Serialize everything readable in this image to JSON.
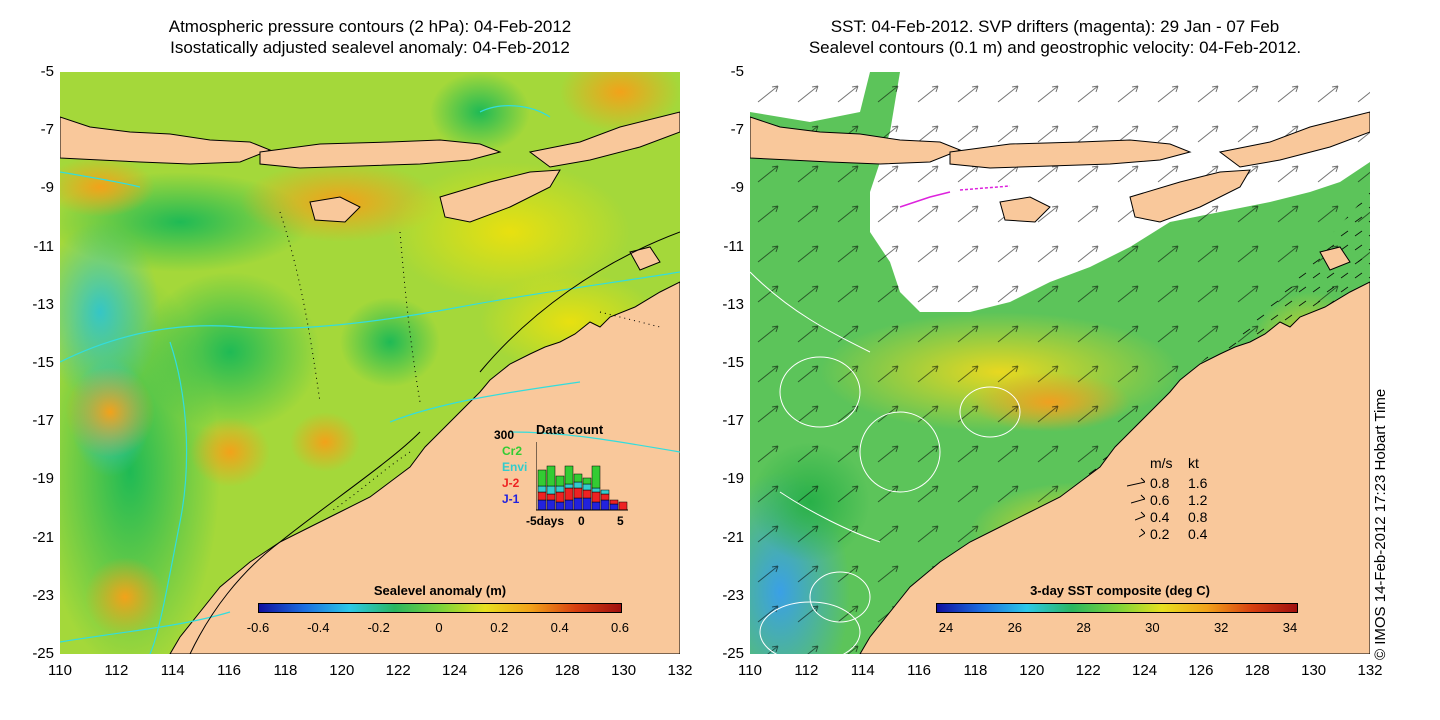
{
  "left_panel": {
    "title_line1": "Atmospheric pressure contours (2 hPa): 04-Feb-2012",
    "title_line2": "Isostatically adjusted sealevel anomaly: 04-Feb-2012",
    "colorbar": {
      "label": "Sealevel anomaly (m)",
      "ticks": [
        "-0.6",
        "-0.4",
        "-0.2",
        "0",
        "0.2",
        "0.4",
        "0.6"
      ]
    },
    "data_count": {
      "title": "Data count",
      "max_label": "300",
      "series": [
        {
          "name": "Cr2",
          "color": "#33cc33"
        },
        {
          "name": "Envi",
          "color": "#33cccc"
        },
        {
          "name": "J-2",
          "color": "#ee2222"
        },
        {
          "name": "J-1",
          "color": "#2222dd"
        }
      ],
      "x_ticks": [
        "-5",
        "0",
        "5"
      ],
      "x_unit": "days"
    }
  },
  "right_panel": {
    "title_line1": "SST: 04-Feb-2012. SVP drifters (magenta): 29 Jan - 07 Feb",
    "title_line2": "Sealevel contours (0.1 m) and geostrophic velocity: 04-Feb-2012.",
    "colorbar": {
      "label": "3-day SST composite (deg C)",
      "ticks": [
        "24",
        "26",
        "28",
        "30",
        "32",
        "34"
      ]
    },
    "velocity_legend": {
      "header_ms": "m/s",
      "header_kt": "kt",
      "rows": [
        {
          "ms": "0.8",
          "kt": "1.6"
        },
        {
          "ms": "0.6",
          "kt": "1.2"
        },
        {
          "ms": "0.4",
          "kt": "0.8"
        },
        {
          "ms": "0.2",
          "kt": "0.4"
        }
      ]
    },
    "credit": "© IMOS 14-Feb-2012 17:23 Hobart Time"
  },
  "axes": {
    "y_ticks": [
      "-5",
      "-7",
      "-9",
      "-11",
      "-13",
      "-15",
      "-17",
      "-19",
      "-21",
      "-23",
      "-25"
    ],
    "x_ticks": [
      "110",
      "112",
      "114",
      "116",
      "118",
      "120",
      "122",
      "124",
      "126",
      "128",
      "130",
      "132"
    ]
  },
  "colors": {
    "land": "#f9c89b",
    "cloud": "#ffffff",
    "contour_cyan": "#33dddd",
    "drifter_magenta": "#dd22dd"
  }
}
